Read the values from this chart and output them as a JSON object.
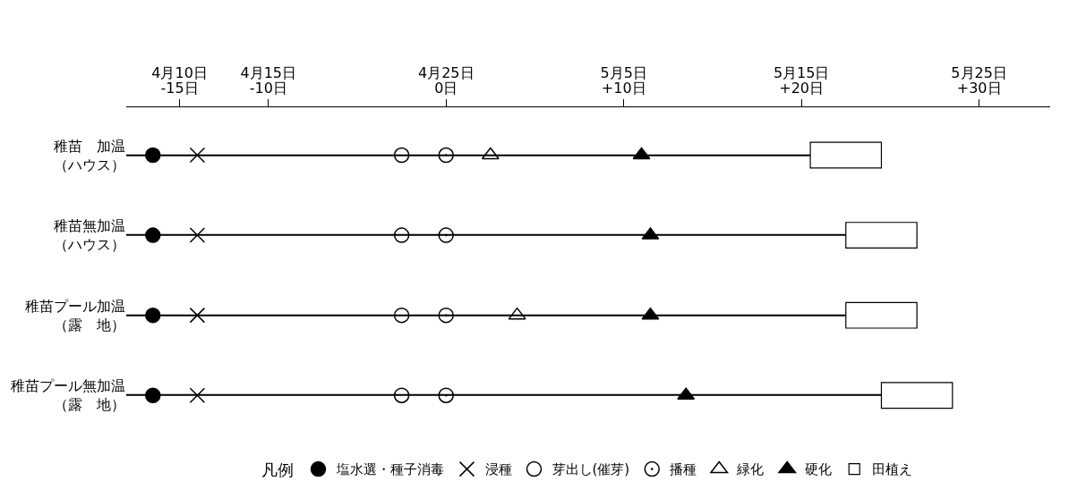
{
  "chart_data": {
    "type": "scatter",
    "orientation": "horizontal",
    "legend_title": "凡例",
    "legend": "bottom",
    "categories": [
      "稚苗　加温（ハウス）",
      "稚苗無加温（ハウス）",
      "稚苗プール加温（露　地）",
      "稚苗プール無加温（露　地）"
    ],
    "xlim": [
      -18,
      34
    ],
    "xticks": [
      {
        "value": -15,
        "label": "-15日"
      },
      {
        "value": -10,
        "label": "-10日"
      },
      {
        "value": 0,
        "label": "0日"
      },
      {
        "value": 10,
        "label": "+10日"
      },
      {
        "value": 20,
        "label": "+20日"
      },
      {
        "value": 30,
        "label": "+30日"
      }
    ],
    "x2lim": [
      "--04-07",
      "--05-29"
    ],
    "x2ticks": [
      {
        "value": "--04-10",
        "label": "4月10日"
      },
      {
        "value": "--04-15",
        "label": "4月15日"
      },
      {
        "value": "--04-25",
        "label": "4月25日"
      },
      {
        "value": "--05-05",
        "label": "5月5日"
      },
      {
        "value": "--05-15",
        "label": "5月15日"
      },
      {
        "value": "--05-25",
        "label": "5月25日"
      }
    ],
    "series": [
      {
        "type": "bar",
        "color": "#000000",
        "line_style": "solid",
        "base": [
          -18,
          -18,
          -18,
          -18
        ],
        "values": [
          38.5,
          40.5,
          40.5,
          42.5
        ]
      },
      {
        "name": "塩水選・種子消毒",
        "color": "#000000",
        "marker": "circle",
        "values": [
          -16.5,
          -16.5,
          -16.5,
          -16.5
        ]
      },
      {
        "name": "浸種",
        "color": "#000000",
        "marker": "cross",
        "values": [
          -14,
          -14,
          -14,
          -14
        ]
      },
      {
        "name": "芽出し(催芽)",
        "color": "#000000",
        "marker": "circle-open",
        "values": [
          -2.5,
          -2.5,
          -2.5,
          -2.5
        ]
      },
      {
        "name": "播種",
        "color": "#000000",
        "marker": "double-circle",
        "values": [
          0,
          0,
          0,
          0
        ]
      },
      {
        "name": "緑化",
        "color": "#000000",
        "marker": "triangle-open",
        "values": [
          2.5,
          null,
          4,
          null
        ]
      },
      {
        "name": "硬化",
        "color": "#000000",
        "marker": "triangle",
        "values": [
          11,
          11.5,
          11.5,
          13.5
        ]
      },
      {
        "type": "bar",
        "name": "田植え",
        "color": "#000000",
        "base": [
          20.5,
          22.5,
          22.5,
          24.5
        ],
        "values": [
          4,
          4,
          4,
          4
        ]
      }
    ]
  }
}
